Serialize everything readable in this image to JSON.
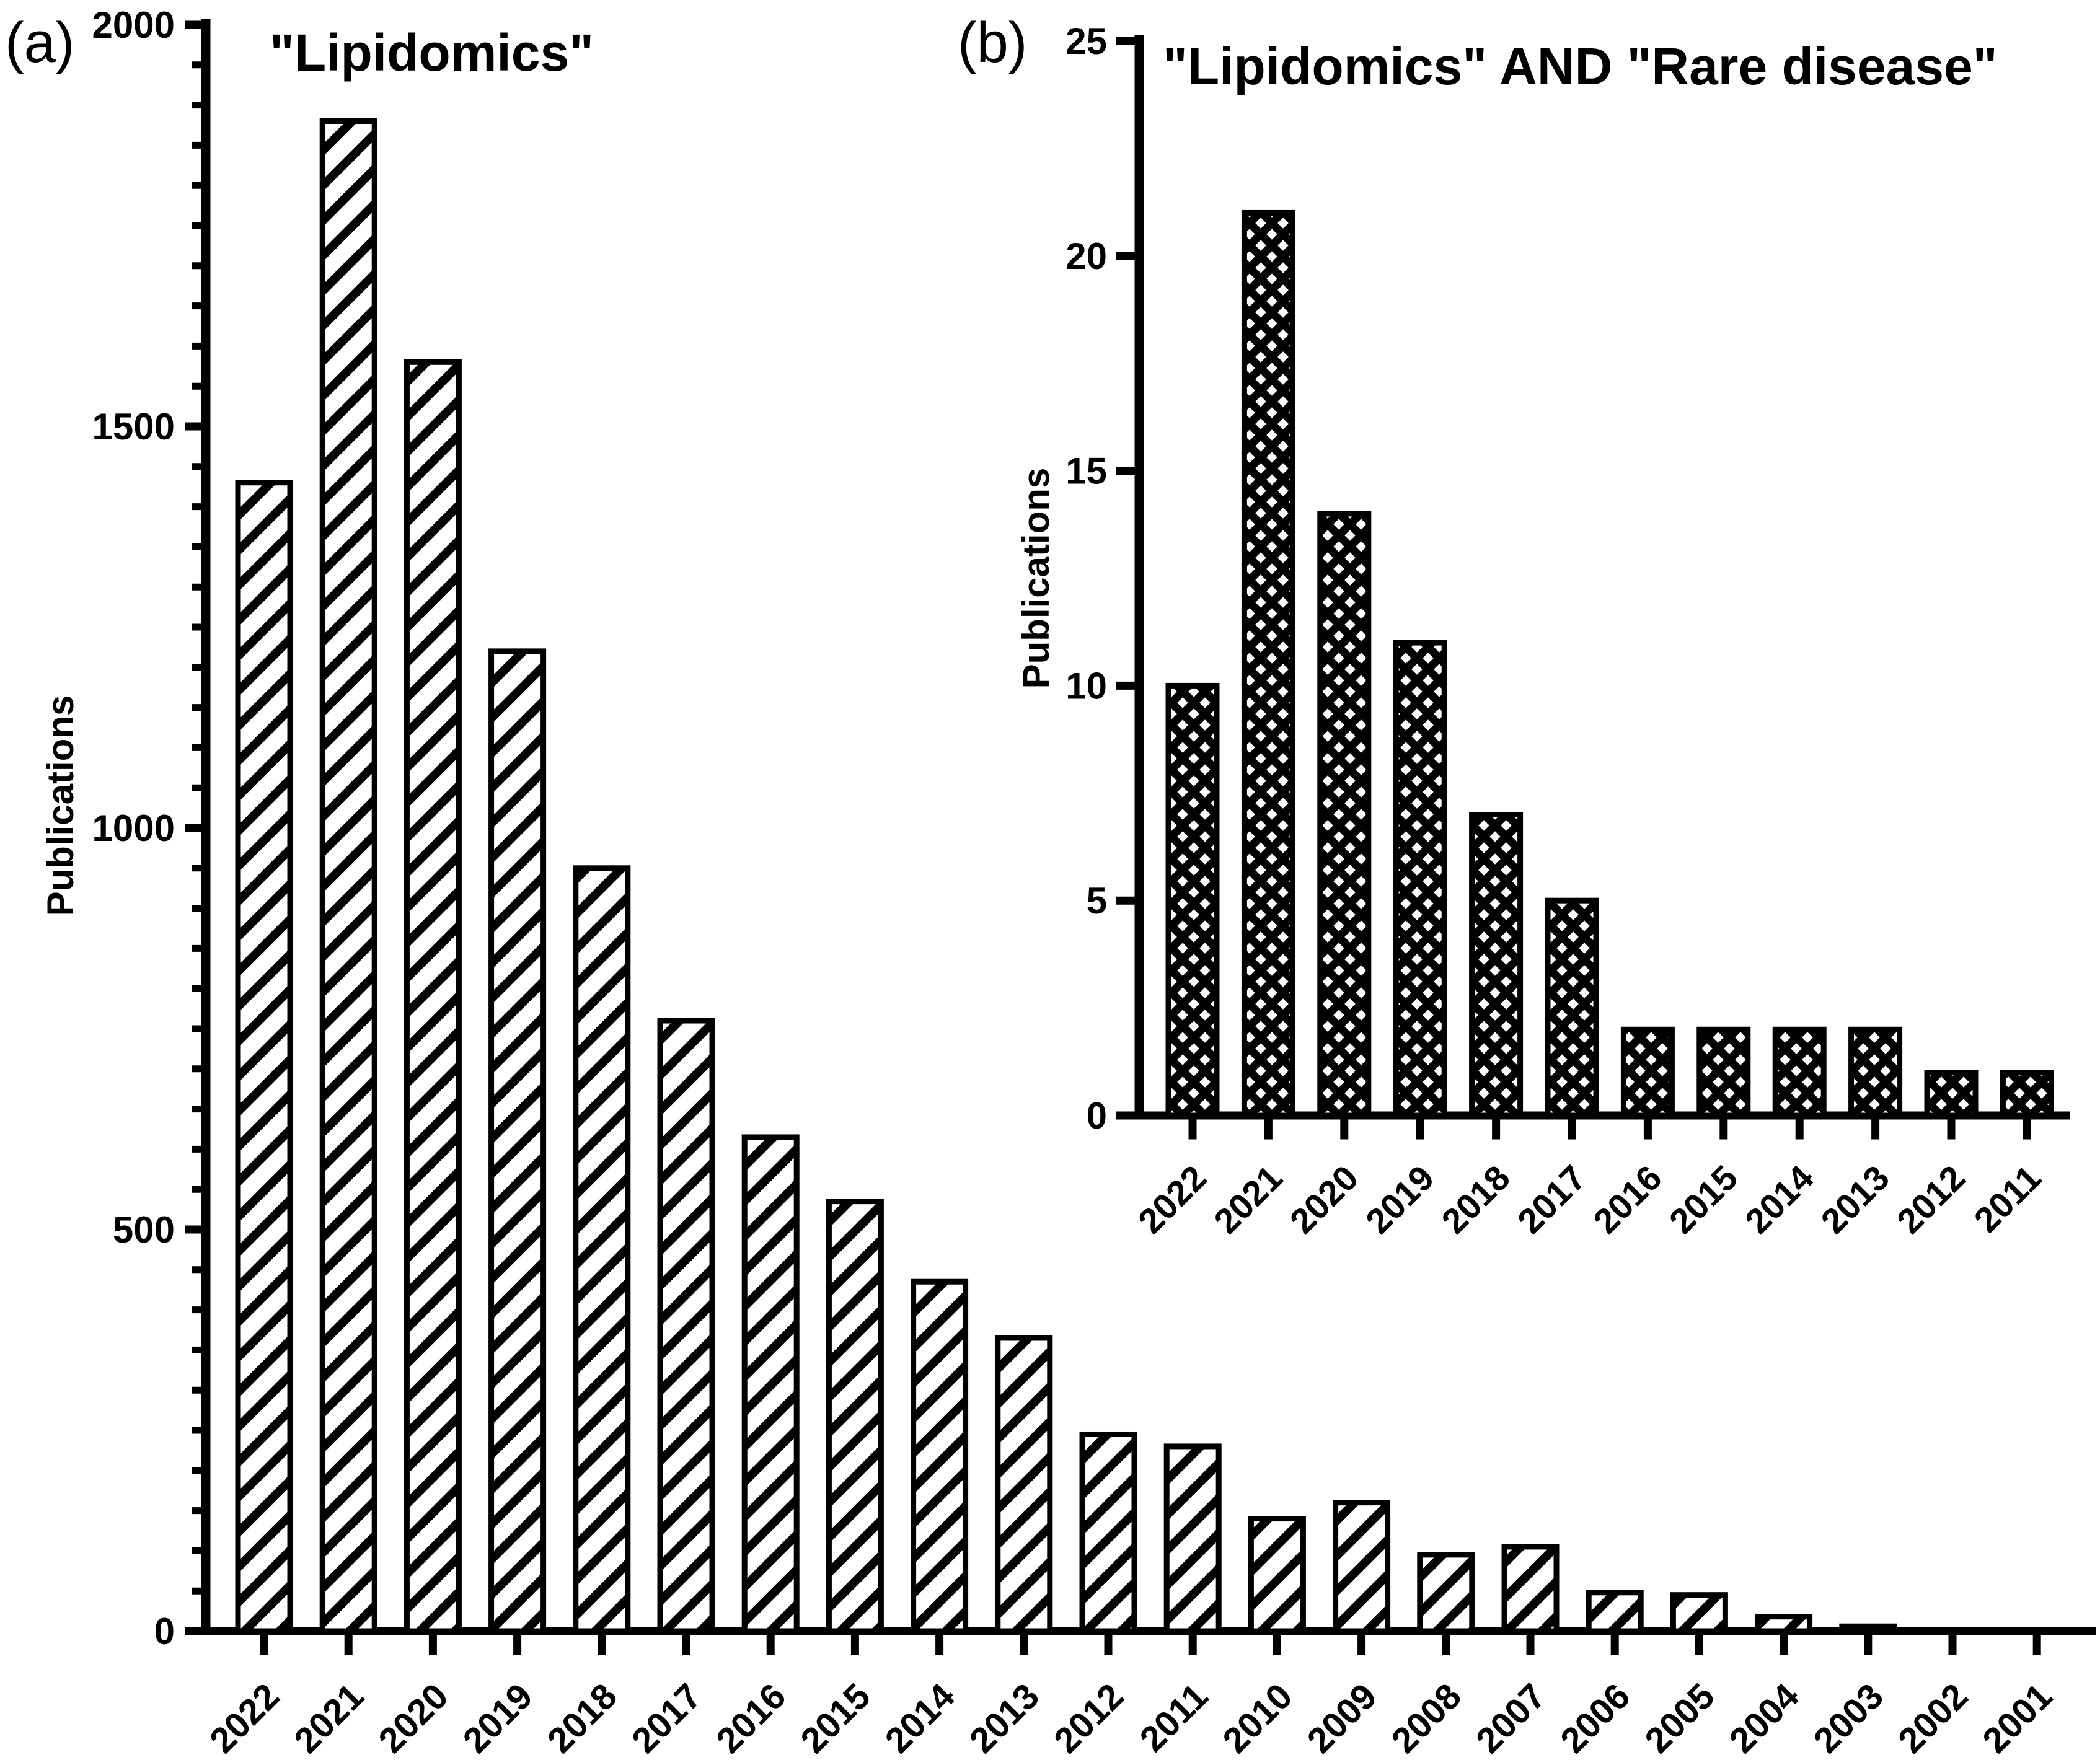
{
  "figure": {
    "panel_a_label": "(a)",
    "panel_b_label": "(b)",
    "colors": {
      "bar_fill": "#000000",
      "axis": "#000000",
      "background": "#ffffff"
    }
  },
  "chart_data": [
    {
      "type": "bar",
      "panel": "a",
      "title": "\"Lipidomics\"",
      "xlabel": "",
      "ylabel": "Publications",
      "categories": [
        "2022",
        "2021",
        "2020",
        "2019",
        "2018",
        "2017",
        "2016",
        "2015",
        "2014",
        "2013",
        "2012",
        "2011",
        "2010",
        "2009",
        "2008",
        "2007",
        "2006",
        "2005",
        "2004",
        "2003",
        "2002",
        "2001"
      ],
      "values": [
        1430,
        1880,
        1580,
        1220,
        950,
        760,
        615,
        535,
        435,
        365,
        245,
        230,
        140,
        160,
        95,
        105,
        48,
        45,
        18,
        6,
        2,
        1
      ],
      "ylim": [
        0,
        2000
      ],
      "yticks": [
        0,
        500,
        1000,
        1500,
        2000
      ],
      "y_minor_step": 50,
      "grid": false,
      "legend": "none",
      "hatch": "diagonal-lines",
      "x_tick_label_rotation": 45
    },
    {
      "type": "bar",
      "panel": "b",
      "title": "\"Lipidomics\" AND \"Rare disease\"",
      "xlabel": "",
      "ylabel": "Publications",
      "categories": [
        "2022",
        "2021",
        "2020",
        "2019",
        "2018",
        "2017",
        "2016",
        "2015",
        "2014",
        "2013",
        "2012",
        "2011"
      ],
      "values": [
        10,
        21,
        14,
        11,
        7,
        5,
        2,
        2,
        2,
        2,
        1,
        1
      ],
      "ylim": [
        0,
        25
      ],
      "yticks": [
        0,
        5,
        10,
        15,
        20,
        25
      ],
      "y_minor_step": 0,
      "grid": false,
      "legend": "none",
      "hatch": "diamond-crosshatch",
      "x_tick_label_rotation": 45
    }
  ]
}
